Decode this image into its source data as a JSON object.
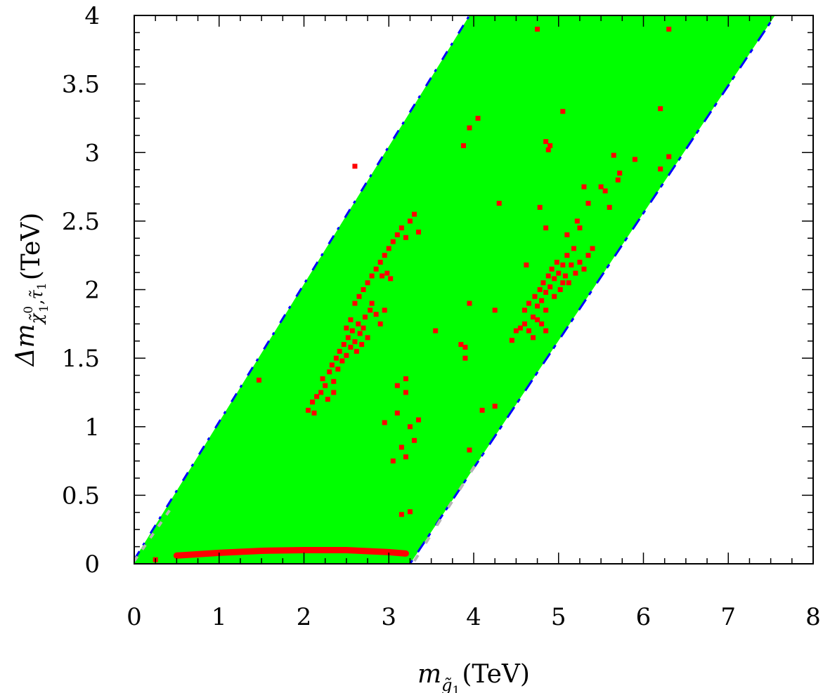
{
  "chart_data": {
    "type": "scatter",
    "xlabel": {
      "symbol": "m",
      "sub": "g̃",
      "subsub": "1",
      "unit": "(TeV)"
    },
    "ylabel": {
      "symbol": "Δm",
      "sub": "χ̃",
      "subsup": "0",
      "subsub1": "1",
      "sub2": "τ̃",
      "subsub2": "1",
      "unit": "(TeV)"
    },
    "xlim": [
      0,
      8
    ],
    "ylim": [
      0,
      4
    ],
    "xticks": [
      "0",
      "1",
      "2",
      "3",
      "4",
      "5",
      "6",
      "7",
      "8"
    ],
    "yticks": [
      "0",
      "0.5",
      "1",
      "1.5",
      "2",
      "2.5",
      "3",
      "3.5",
      "4"
    ],
    "colors": {
      "green_region": "#00ff00",
      "blue_edge": "#0000ff",
      "gray_edge": "#b4b4b4",
      "red_points": "#ff0000"
    },
    "green_region_outline": [
      [
        0.0,
        0.0
      ],
      [
        3.25,
        0.0
      ],
      [
        7.55,
        4.0
      ],
      [
        3.95,
        4.0
      ],
      [
        0.0,
        0.03
      ]
    ],
    "red_band": [
      [
        0.5,
        0.06
      ],
      [
        1.0,
        0.08
      ],
      [
        1.5,
        0.095
      ],
      [
        2.0,
        0.1
      ],
      [
        2.5,
        0.1
      ],
      [
        3.0,
        0.085
      ],
      [
        3.2,
        0.075
      ]
    ],
    "red_points": [
      [
        0.25,
        0.03
      ],
      [
        1.47,
        1.34
      ],
      [
        2.05,
        1.12
      ],
      [
        2.1,
        1.18
      ],
      [
        2.12,
        1.1
      ],
      [
        2.15,
        1.22
      ],
      [
        2.2,
        1.25
      ],
      [
        2.25,
        1.3
      ],
      [
        2.22,
        1.35
      ],
      [
        2.3,
        1.4
      ],
      [
        2.33,
        1.45
      ],
      [
        2.35,
        1.33
      ],
      [
        2.38,
        1.5
      ],
      [
        2.4,
        1.42
      ],
      [
        2.42,
        1.55
      ],
      [
        2.45,
        1.48
      ],
      [
        2.47,
        1.6
      ],
      [
        2.5,
        1.52
      ],
      [
        2.52,
        1.65
      ],
      [
        2.55,
        1.58
      ],
      [
        2.57,
        1.7
      ],
      [
        2.6,
        1.62
      ],
      [
        2.62,
        1.55
      ],
      [
        2.64,
        1.75
      ],
      [
        2.66,
        1.68
      ],
      [
        2.68,
        1.6
      ],
      [
        2.7,
        1.72
      ],
      [
        2.72,
        1.8
      ],
      [
        2.75,
        1.65
      ],
      [
        2.78,
        1.85
      ],
      [
        2.6,
        1.9
      ],
      [
        2.55,
        1.78
      ],
      [
        2.5,
        1.72
      ],
      [
        2.65,
        1.95
      ],
      [
        2.7,
        2.0
      ],
      [
        2.75,
        2.05
      ],
      [
        2.8,
        2.1
      ],
      [
        2.85,
        2.15
      ],
      [
        2.9,
        2.2
      ],
      [
        2.95,
        2.25
      ],
      [
        3.0,
        2.3
      ],
      [
        3.05,
        2.35
      ],
      [
        3.1,
        2.4
      ],
      [
        3.15,
        2.45
      ],
      [
        3.2,
        2.38
      ],
      [
        3.25,
        2.5
      ],
      [
        3.3,
        2.55
      ],
      [
        3.35,
        2.42
      ],
      [
        2.92,
        2.1
      ],
      [
        2.98,
        2.12
      ],
      [
        3.02,
        2.08
      ],
      [
        2.8,
        1.9
      ],
      [
        2.85,
        1.82
      ],
      [
        2.9,
        1.75
      ],
      [
        2.95,
        1.85
      ],
      [
        2.35,
        1.25
      ],
      [
        2.28,
        1.2
      ],
      [
        2.6,
        2.9
      ],
      [
        3.2,
        1.35
      ],
      [
        3.2,
        1.25
      ],
      [
        3.1,
        1.3
      ],
      [
        3.15,
        0.85
      ],
      [
        3.3,
        0.9
      ],
      [
        3.25,
        1.0
      ],
      [
        3.35,
        1.05
      ],
      [
        3.1,
        1.1
      ],
      [
        2.95,
        1.03
      ],
      [
        3.05,
        0.75
      ],
      [
        3.2,
        0.78
      ],
      [
        3.25,
        0.38
      ],
      [
        3.15,
        0.36
      ],
      [
        3.55,
        1.7
      ],
      [
        3.85,
        1.6
      ],
      [
        3.9,
        1.58
      ],
      [
        3.9,
        1.5
      ],
      [
        4.1,
        1.12
      ],
      [
        4.25,
        1.15
      ],
      [
        4.45,
        1.63
      ],
      [
        4.5,
        1.7
      ],
      [
        3.95,
        0.83
      ],
      [
        3.88,
        3.05
      ],
      [
        4.05,
        3.25
      ],
      [
        3.95,
        3.18
      ],
      [
        4.3,
        2.63
      ],
      [
        4.25,
        1.85
      ],
      [
        3.95,
        1.9
      ],
      [
        4.55,
        1.72
      ],
      [
        4.6,
        1.85
      ],
      [
        4.65,
        1.9
      ],
      [
        4.7,
        1.8
      ],
      [
        4.72,
        1.95
      ],
      [
        4.75,
        1.88
      ],
      [
        4.78,
        2.0
      ],
      [
        4.8,
        1.92
      ],
      [
        4.82,
        2.05
      ],
      [
        4.85,
        1.98
      ],
      [
        4.88,
        2.1
      ],
      [
        4.9,
        2.02
      ],
      [
        4.92,
        2.15
      ],
      [
        4.95,
        2.08
      ],
      [
        4.98,
        2.2
      ],
      [
        5.0,
        2.12
      ],
      [
        5.02,
        2.0
      ],
      [
        5.05,
        2.18
      ],
      [
        5.08,
        2.1
      ],
      [
        5.1,
        2.25
      ],
      [
        5.12,
        2.05
      ],
      [
        5.15,
        2.18
      ],
      [
        5.18,
        2.3
      ],
      [
        5.2,
        2.12
      ],
      [
        5.25,
        2.2
      ],
      [
        5.3,
        2.15
      ],
      [
        5.35,
        2.25
      ],
      [
        5.4,
        2.3
      ],
      [
        4.65,
        1.7
      ],
      [
        4.7,
        1.65
      ],
      [
        4.8,
        1.75
      ],
      [
        4.85,
        1.7
      ],
      [
        4.6,
        1.75
      ],
      [
        4.75,
        1.78
      ],
      [
        4.85,
        1.85
      ],
      [
        4.95,
        1.95
      ],
      [
        5.05,
        2.05
      ],
      [
        4.62,
        2.18
      ],
      [
        4.85,
        2.45
      ],
      [
        4.78,
        2.6
      ],
      [
        4.9,
        3.05
      ],
      [
        4.85,
        3.08
      ],
      [
        4.88,
        3.02
      ],
      [
        5.05,
        3.3
      ],
      [
        4.75,
        3.9
      ],
      [
        5.1,
        2.4
      ],
      [
        5.22,
        2.5
      ],
      [
        5.25,
        2.45
      ],
      [
        5.3,
        2.75
      ],
      [
        5.35,
        2.63
      ],
      [
        5.5,
        2.75
      ],
      [
        5.55,
        2.72
      ],
      [
        5.65,
        2.98
      ],
      [
        5.7,
        2.8
      ],
      [
        5.72,
        2.85
      ],
      [
        5.6,
        2.6
      ],
      [
        5.9,
        2.95
      ],
      [
        6.2,
        3.32
      ],
      [
        6.3,
        3.9
      ],
      [
        6.2,
        2.88
      ],
      [
        6.3,
        2.97
      ]
    ]
  }
}
